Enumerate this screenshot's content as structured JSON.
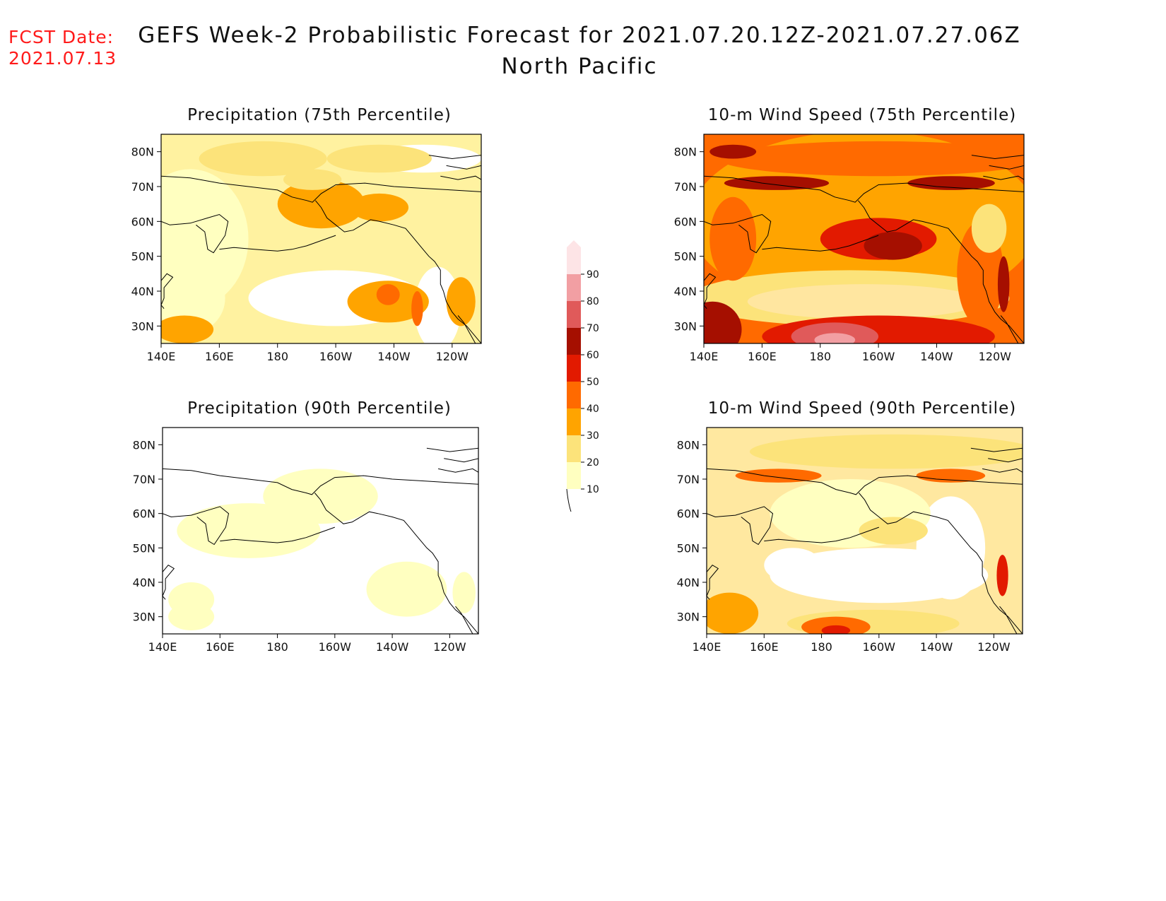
{
  "forecast_date": {
    "label": "FCST Date:",
    "value": "2021.07.13"
  },
  "title": {
    "main": "GEFS Week-2 Probabilistic Forecast for 2021.07.20.12Z-2021.07.27.06Z",
    "region": "North Pacific"
  },
  "panels": [
    {
      "id": "precip75",
      "title": "Precipitation (75th Percentile)"
    },
    {
      "id": "wind75",
      "title": "10-m Wind Speed (75th Percentile)"
    },
    {
      "id": "precip90",
      "title": "Precipitation (90th Percentile)"
    },
    {
      "id": "wind90",
      "title": "10-m Wind Speed (90th Percentile)"
    }
  ],
  "map_axes": {
    "lon_ticks": [
      "140E",
      "160E",
      "180",
      "160W",
      "140W",
      "120W"
    ],
    "lat_ticks": [
      "80N",
      "70N",
      "60N",
      "50N",
      "40N",
      "30N"
    ],
    "lon_range": [
      140,
      250
    ],
    "lat_range": [
      25,
      85
    ]
  },
  "colorbar": {
    "ticks": [
      "10",
      "20",
      "30",
      "40",
      "50",
      "60",
      "70",
      "80",
      "90"
    ],
    "colors": [
      "#ffffc0",
      "#fce37a",
      "#ffa400",
      "#ff6a00",
      "#e21a00",
      "#a50f00",
      "#e05a5a",
      "#f29fa3",
      "#fde4e6"
    ]
  }
}
